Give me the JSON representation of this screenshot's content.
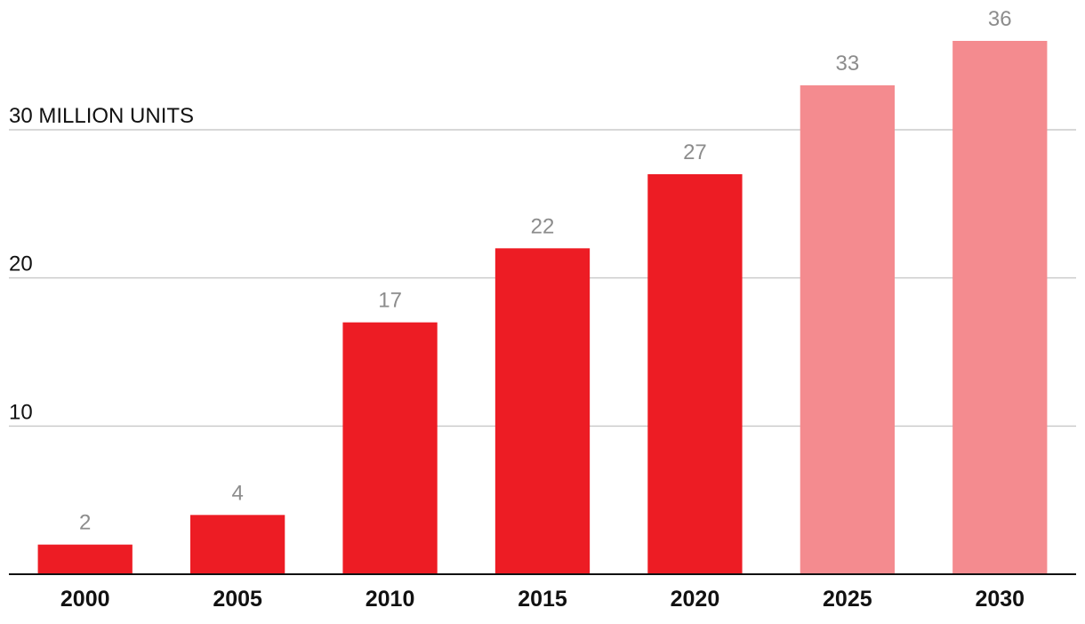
{
  "chart_data": {
    "type": "bar",
    "categories": [
      "2000",
      "2005",
      "2010",
      "2015",
      "2020",
      "2025",
      "2030"
    ],
    "values": [
      2,
      4,
      17,
      22,
      27,
      33,
      36
    ],
    "projected": [
      false,
      false,
      false,
      false,
      false,
      true,
      true
    ],
    "ylim": [
      0,
      36
    ],
    "yticks": [
      {
        "value": 10,
        "label": "10"
      },
      {
        "value": 20,
        "label": "20"
      },
      {
        "value": 30,
        "label": "30 MILLION UNITS"
      }
    ],
    "grid": true,
    "colors": {
      "actual": "#ed1c24",
      "projected": "#f48b8f",
      "grid": "#cccccc",
      "axis": "#111111",
      "data_label": "#8c8c8c"
    }
  }
}
